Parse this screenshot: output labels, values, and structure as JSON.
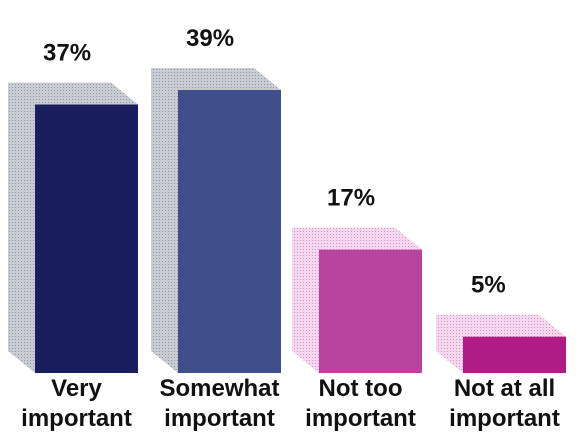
{
  "chart_data": {
    "type": "bar",
    "categories": [
      [
        "Very",
        "important"
      ],
      [
        "Somewhat",
        "important"
      ],
      [
        "Not too",
        "important"
      ],
      [
        "Not at all",
        "important"
      ]
    ],
    "values": [
      37,
      39,
      17,
      5
    ],
    "value_labels": [
      "37%",
      "39%",
      "17%",
      "5%"
    ],
    "unit": "%",
    "ylim": [
      0,
      39
    ],
    "grid": false,
    "legend": "none",
    "title": "",
    "xlabel": "",
    "ylabel": ""
  },
  "colors": {
    "bars": [
      "#1a1d5e",
      "#3e4f8c",
      "#b8449f",
      "#b01c86"
    ],
    "shadows": [
      "#b4b9c3",
      "#b4b9c3",
      "#f1c4e4",
      "#f1c4e4"
    ],
    "text": "#111111"
  }
}
